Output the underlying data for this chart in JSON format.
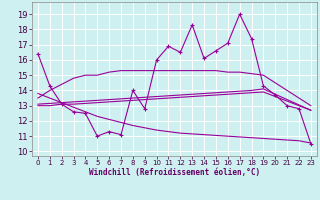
{
  "xlabel": "Windchill (Refroidissement éolien,°C)",
  "background_color": "#cff0f0",
  "grid_color": "#ffffff",
  "line_color": "#990099",
  "x_ticks": [
    0,
    1,
    2,
    3,
    4,
    5,
    6,
    7,
    8,
    9,
    10,
    11,
    12,
    13,
    14,
    15,
    16,
    17,
    18,
    19,
    20,
    21,
    22,
    23
  ],
  "y_ticks": [
    10,
    11,
    12,
    13,
    14,
    15,
    16,
    17,
    18,
    19
  ],
  "ylim": [
    9.7,
    19.8
  ],
  "xlim": [
    -0.5,
    23.5
  ],
  "series1_x": [
    0,
    1,
    2,
    3,
    4,
    5,
    6,
    7,
    8,
    9,
    10,
    11,
    12,
    13,
    14,
    15,
    16,
    17,
    18,
    19,
    20,
    21,
    22,
    23
  ],
  "series1_y": [
    16.4,
    14.3,
    13.1,
    12.6,
    12.5,
    11.0,
    11.3,
    11.1,
    14.0,
    12.8,
    16.0,
    16.9,
    16.5,
    18.3,
    16.1,
    16.6,
    17.1,
    19.0,
    17.4,
    14.3,
    13.7,
    13.0,
    12.8,
    10.5
  ],
  "series2_x": [
    0,
    1,
    2,
    3,
    4,
    5,
    6,
    7,
    8,
    9,
    10,
    11,
    12,
    13,
    14,
    15,
    16,
    17,
    18,
    19,
    20,
    21,
    22,
    23
  ],
  "series2_y": [
    13.0,
    13.0,
    13.1,
    13.1,
    13.15,
    13.2,
    13.25,
    13.3,
    13.35,
    13.4,
    13.45,
    13.5,
    13.55,
    13.6,
    13.65,
    13.7,
    13.75,
    13.8,
    13.85,
    13.9,
    13.6,
    13.3,
    13.0,
    12.7
  ],
  "series3_x": [
    0,
    1,
    2,
    3,
    4,
    5,
    6,
    7,
    8,
    9,
    10,
    11,
    12,
    13,
    14,
    15,
    16,
    17,
    18,
    19,
    20,
    21,
    22,
    23
  ],
  "series3_y": [
    13.1,
    13.15,
    13.2,
    13.25,
    13.3,
    13.35,
    13.4,
    13.45,
    13.5,
    13.55,
    13.6,
    13.65,
    13.7,
    13.75,
    13.8,
    13.85,
    13.9,
    13.95,
    14.0,
    14.1,
    13.75,
    13.4,
    13.05,
    12.7
  ],
  "series4_x": [
    0,
    1,
    2,
    3,
    4,
    5,
    6,
    7,
    8,
    9,
    10,
    11,
    12,
    13,
    14,
    15,
    16,
    17,
    18,
    19,
    20,
    21,
    22,
    23
  ],
  "series4_y": [
    13.5,
    14.0,
    14.4,
    14.8,
    15.0,
    15.0,
    15.2,
    15.3,
    15.3,
    15.3,
    15.3,
    15.3,
    15.3,
    15.3,
    15.3,
    15.3,
    15.2,
    15.2,
    15.1,
    15.0,
    14.5,
    14.0,
    13.5,
    13.0
  ],
  "series5_x": [
    0,
    1,
    2,
    3,
    4,
    5,
    6,
    7,
    8,
    9,
    10,
    11,
    12,
    13,
    14,
    15,
    16,
    17,
    18,
    19,
    20,
    21,
    22,
    23
  ],
  "series5_y": [
    13.8,
    13.5,
    13.2,
    12.9,
    12.6,
    12.3,
    12.1,
    11.9,
    11.7,
    11.55,
    11.4,
    11.3,
    11.2,
    11.15,
    11.1,
    11.05,
    11.0,
    10.95,
    10.9,
    10.85,
    10.8,
    10.75,
    10.7,
    10.55
  ]
}
